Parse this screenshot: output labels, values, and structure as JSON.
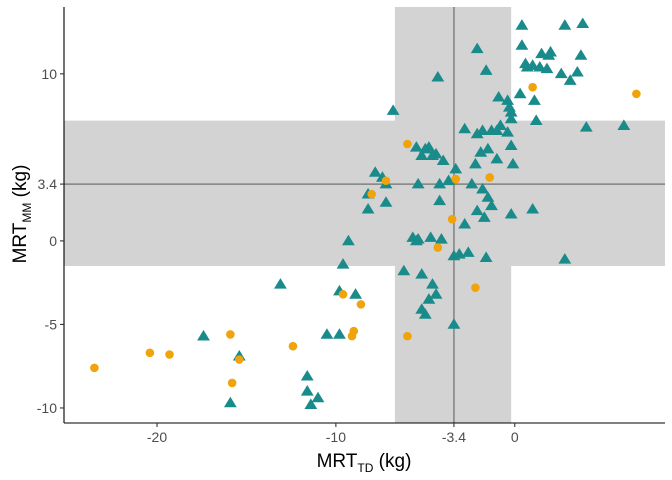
{
  "chart_data": {
    "type": "scatter",
    "title": "",
    "xlabel": {
      "main": "MRT",
      "sub": "TD",
      "suffix": " (kg)"
    },
    "ylabel": {
      "main": "MRT",
      "sub": "MM",
      "suffix": " (kg)"
    },
    "xlim": [
      -25.2,
      8.4
    ],
    "ylim": [
      -10.9,
      14.0
    ],
    "x_ticks": [
      {
        "value": -20,
        "label": "-20"
      },
      {
        "value": -10,
        "label": "-10"
      },
      {
        "value": -3.4,
        "label": "-3.4"
      },
      {
        "value": 0,
        "label": "0"
      }
    ],
    "y_ticks": [
      {
        "value": -10,
        "label": "-10"
      },
      {
        "value": -5,
        "label": "-5"
      },
      {
        "value": 0,
        "label": "0"
      },
      {
        "value": 3.4,
        "label": "3.4"
      },
      {
        "value": 10,
        "label": "10"
      }
    ],
    "grid": false,
    "reference_lines": {
      "x": -3.4,
      "y": 3.4,
      "color": "#808080"
    },
    "bands": {
      "x_band": [
        -6.7,
        -0.2
      ],
      "y_band": [
        -1.5,
        7.2
      ],
      "color": "#d3d3d3"
    },
    "series": [
      {
        "marker": "triangle",
        "color": "#1a8b8b",
        "points": [
          [
            0.4,
            12.9
          ],
          [
            2.8,
            12.9
          ],
          [
            3.8,
            13.0
          ],
          [
            -2.1,
            11.5
          ],
          [
            0.4,
            11.7
          ],
          [
            1.5,
            11.2
          ],
          [
            1.9,
            11.1
          ],
          [
            2.0,
            11.3
          ],
          [
            3.7,
            11.1
          ],
          [
            0.6,
            10.6
          ],
          [
            0.7,
            10.4
          ],
          [
            1.0,
            10.5
          ],
          [
            1.4,
            10.4
          ],
          [
            1.8,
            10.3
          ],
          [
            3.5,
            10.1
          ],
          [
            -1.6,
            10.2
          ],
          [
            2.6,
            10.0
          ],
          [
            3.1,
            9.6
          ],
          [
            -4.3,
            9.8
          ],
          [
            0.3,
            8.8
          ],
          [
            -0.9,
            8.6
          ],
          [
            -0.4,
            8.4
          ],
          [
            -0.3,
            8.0
          ],
          [
            1.1,
            8.4
          ],
          [
            -6.8,
            7.8
          ],
          [
            -0.2,
            7.7
          ],
          [
            1.2,
            7.2
          ],
          [
            -0.2,
            7.3
          ],
          [
            -0.8,
            6.9
          ],
          [
            -1.3,
            6.6
          ],
          [
            -1.0,
            6.6
          ],
          [
            -1.8,
            6.6
          ],
          [
            -2.1,
            6.4
          ],
          [
            -0.4,
            6.5
          ],
          [
            4.0,
            6.8
          ],
          [
            6.1,
            6.9
          ],
          [
            -2.8,
            6.7
          ],
          [
            -5.5,
            5.6
          ],
          [
            -5.2,
            5.1
          ],
          [
            -5.0,
            5.5
          ],
          [
            -4.8,
            5.6
          ],
          [
            -4.6,
            5.1
          ],
          [
            -4.4,
            5.2
          ],
          [
            -1.5,
            5.5
          ],
          [
            -0.2,
            5.7
          ],
          [
            -1.9,
            5.3
          ],
          [
            -0.1,
            4.6
          ],
          [
            -1.0,
            4.9
          ],
          [
            -3.3,
            4.3
          ],
          [
            -4.0,
            4.8
          ],
          [
            -2.2,
            4.6
          ],
          [
            -7.8,
            4.1
          ],
          [
            -7.4,
            3.8
          ],
          [
            -7.2,
            3.4
          ],
          [
            -4.2,
            3.4
          ],
          [
            -3.7,
            3.6
          ],
          [
            -2.4,
            3.4
          ],
          [
            -5.4,
            3.4
          ],
          [
            -8.2,
            2.8
          ],
          [
            -1.8,
            3.1
          ],
          [
            -1.5,
            2.6
          ],
          [
            -7.2,
            2.3
          ],
          [
            -8.2,
            1.9
          ],
          [
            -4.2,
            2.4
          ],
          [
            -1.3,
            2.1
          ],
          [
            -2.1,
            1.8
          ],
          [
            -1.7,
            1.4
          ],
          [
            -0.2,
            1.6
          ],
          [
            1.0,
            1.9
          ],
          [
            -2.8,
            1.0
          ],
          [
            -9.3,
            0.0
          ],
          [
            -4.7,
            0.2
          ],
          [
            -5.7,
            0.2
          ],
          [
            -5.5,
            0.0
          ],
          [
            -5.4,
            0.1
          ],
          [
            -4.1,
            0.1
          ],
          [
            -2.6,
            -0.7
          ],
          [
            -3.4,
            -0.9
          ],
          [
            -3.1,
            -0.8
          ],
          [
            -1.6,
            -1.0
          ],
          [
            2.8,
            -1.1
          ],
          [
            -9.6,
            -1.4
          ],
          [
            -6.2,
            -1.8
          ],
          [
            -5.2,
            -2.0
          ],
          [
            -4.6,
            -2.6
          ],
          [
            -4.4,
            -3.2
          ],
          [
            -4.8,
            -3.5
          ],
          [
            -13.1,
            -2.6
          ],
          [
            -9.8,
            -3.0
          ],
          [
            -8.9,
            -3.2
          ],
          [
            -5.2,
            -4.1
          ],
          [
            -5.0,
            -4.4
          ],
          [
            -3.4,
            -5.0
          ],
          [
            -9.8,
            -5.6
          ],
          [
            -10.5,
            -5.6
          ],
          [
            -17.4,
            -5.7
          ],
          [
            -15.4,
            -6.9
          ],
          [
            -11.6,
            -8.1
          ],
          [
            -11.6,
            -9.0
          ],
          [
            -11.0,
            -9.4
          ],
          [
            -11.4,
            -9.8
          ],
          [
            -15.9,
            -9.7
          ]
        ]
      },
      {
        "marker": "circle",
        "color": "#f0a30a",
        "points": [
          [
            1.0,
            9.2
          ],
          [
            6.8,
            8.8
          ],
          [
            -6.0,
            5.8
          ],
          [
            -7.2,
            3.6
          ],
          [
            -8.0,
            2.8
          ],
          [
            -3.3,
            3.7
          ],
          [
            -1.4,
            3.8
          ],
          [
            -3.5,
            1.3
          ],
          [
            -4.3,
            -0.4
          ],
          [
            -2.2,
            -2.8
          ],
          [
            -9.6,
            -3.2
          ],
          [
            -8.6,
            -3.8
          ],
          [
            -6.0,
            -5.7
          ],
          [
            -9.0,
            -5.4
          ],
          [
            -9.1,
            -5.7
          ],
          [
            -15.9,
            -5.6
          ],
          [
            -12.4,
            -6.3
          ],
          [
            -15.4,
            -7.1
          ],
          [
            -15.8,
            -8.5
          ],
          [
            -20.4,
            -6.7
          ],
          [
            -19.3,
            -6.8
          ],
          [
            -23.5,
            -7.6
          ]
        ]
      }
    ]
  }
}
